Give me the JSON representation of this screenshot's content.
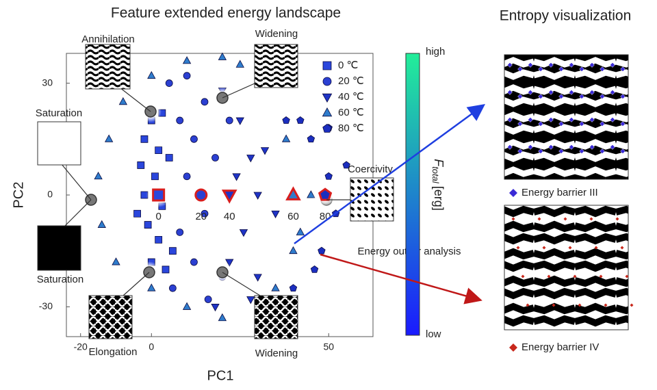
{
  "chart_data": {
    "type": "scatter",
    "title": "Feature extended energy landscape",
    "side_title": "Entropy visualization",
    "xlabel": "PC1",
    "ylabel": "PC2",
    "xlim": [
      -24,
      62.5
    ],
    "ylim": [
      -38,
      38
    ],
    "xticks": [
      -20,
      0,
      50
    ],
    "yticks": [
      -30,
      0,
      30
    ],
    "series": [
      {
        "name": "0 ℃",
        "marker": "square",
        "color": "#2a46dc",
        "x": [
          -2,
          0,
          -3,
          2,
          1,
          -2,
          3,
          -1,
          2,
          0,
          4,
          5,
          -4,
          6,
          3
        ],
        "y": [
          15,
          20,
          8,
          12,
          5,
          0,
          -3,
          -8,
          -12,
          -18,
          -20,
          10,
          -5,
          -15,
          22
        ]
      },
      {
        "name": "20 ℃",
        "marker": "circle",
        "color": "#2b40d2",
        "x": [
          5,
          10,
          15,
          8,
          12,
          18,
          10,
          15,
          8,
          12,
          20,
          16,
          6,
          22,
          14
        ],
        "y": [
          30,
          32,
          25,
          20,
          15,
          10,
          5,
          -5,
          -10,
          -18,
          -22,
          -28,
          -25,
          20,
          0
        ]
      },
      {
        "name": "40 ℃",
        "marker": "triangle-down",
        "color": "#1f34c6",
        "x": [
          20,
          25,
          28,
          30,
          26,
          22,
          30,
          24,
          32,
          28,
          18,
          35
        ],
        "y": [
          28,
          20,
          10,
          0,
          -10,
          -18,
          -22,
          5,
          12,
          -28,
          -30,
          -5
        ]
      },
      {
        "name": "60 ℃",
        "marker": "triangle",
        "color": "#2f7ccc",
        "x": [
          -15,
          -12,
          -8,
          0,
          10,
          20,
          25,
          -14,
          -10,
          0,
          10,
          20,
          35,
          40,
          38,
          45,
          42
        ],
        "y": [
          5,
          15,
          25,
          32,
          36,
          37,
          35,
          -8,
          -18,
          -25,
          -30,
          -33,
          -25,
          -15,
          15,
          0,
          -10
        ]
      },
      {
        "name": "80 ℃",
        "marker": "pentagon",
        "color": "#1b2ebf",
        "x": [
          38,
          45,
          50,
          52,
          48,
          42,
          55,
          46,
          40,
          50
        ],
        "y": [
          20,
          15,
          5,
          -5,
          -15,
          20,
          8,
          -20,
          -25,
          18
        ]
      }
    ],
    "centroids": {
      "x": [
        2,
        14,
        22,
        40,
        49
      ],
      "y": [
        0,
        0,
        0,
        0,
        0
      ],
      "labels": [
        0,
        20,
        40,
        60,
        80
      ],
      "edge_color": "#d81e1e"
    },
    "colorbar": {
      "high": "high",
      "low": "low",
      "symbol": "F",
      "subscript": "total",
      "unit": "[erg]",
      "colors": [
        "#1a1aff",
        "#22ee99"
      ]
    },
    "annotations": [
      "Annihilation",
      "Widening",
      "Saturation",
      "Saturation",
      "Elongation",
      "Widening",
      "Coercivity",
      "Energy outlier analysis"
    ],
    "panels": [
      {
        "label": "Energy barrier III",
        "color": "#3a2ad6"
      },
      {
        "label": "Energy barrier IV",
        "color": "#c8281c"
      }
    ]
  }
}
